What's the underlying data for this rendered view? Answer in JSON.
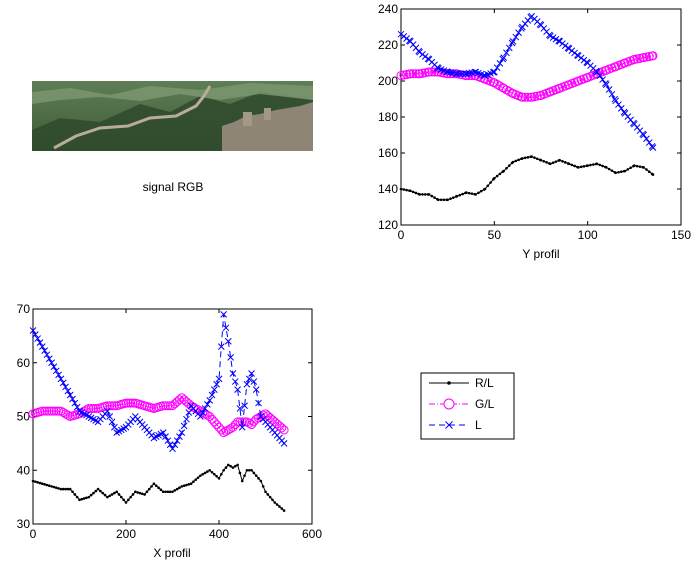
{
  "image_panel": {
    "caption": "signal RGB"
  },
  "legend": {
    "entries": [
      {
        "label": "R/L",
        "color": "#000000",
        "marker": "dot",
        "line": "solid"
      },
      {
        "label": "G/L",
        "color": "#ff00ff",
        "marker": "circle",
        "line": "dash-dot"
      },
      {
        "label": "L",
        "color": "#0000ff",
        "marker": "x",
        "line": "dashed"
      }
    ]
  },
  "chart_data": [
    {
      "id": "y_profile",
      "type": "line",
      "title": "",
      "xlabel": "Y profil",
      "ylabel": "",
      "xlim": [
        0,
        150
      ],
      "ylim": [
        120,
        240
      ],
      "xticks": [
        0,
        50,
        100,
        150
      ],
      "yticks": [
        120,
        140,
        160,
        180,
        200,
        220,
        240
      ],
      "grid": false,
      "x": [
        0,
        5,
        10,
        15,
        20,
        25,
        30,
        35,
        40,
        45,
        50,
        55,
        60,
        65,
        70,
        75,
        80,
        85,
        90,
        95,
        100,
        105,
        110,
        115,
        120,
        125,
        130,
        135
      ],
      "series": [
        {
          "name": "R/L",
          "color": "#000000",
          "marker": "dot",
          "values": [
            140,
            139,
            137,
            137,
            134,
            134,
            136,
            138,
            137,
            140,
            146,
            150,
            155,
            157,
            158,
            156,
            154,
            156,
            154,
            152,
            153,
            154,
            152,
            149,
            150,
            153,
            152,
            148
          ]
        },
        {
          "name": "G/L",
          "color": "#ff00ff",
          "marker": "circle",
          "values": [
            203,
            204,
            204,
            205,
            205,
            204,
            204,
            203,
            203,
            201,
            199,
            196,
            193,
            191,
            191,
            192,
            194,
            196,
            198,
            200,
            202,
            204,
            206,
            208,
            210,
            212,
            213,
            214
          ]
        },
        {
          "name": "L",
          "color": "#0000ff",
          "marker": "x",
          "values": [
            226,
            222,
            216,
            212,
            207,
            205,
            204,
            204,
            205,
            203,
            205,
            213,
            222,
            230,
            236,
            231,
            225,
            222,
            218,
            214,
            210,
            205,
            198,
            189,
            182,
            176,
            170,
            163
          ]
        }
      ]
    },
    {
      "id": "x_profile",
      "type": "line",
      "title": "",
      "xlabel": "X profil",
      "ylabel": "",
      "xlim": [
        0,
        600
      ],
      "ylim": [
        30,
        70
      ],
      "xticks": [
        0,
        200,
        400,
        600
      ],
      "yticks": [
        30,
        40,
        50,
        60,
        70
      ],
      "grid": false,
      "x": [
        0,
        20,
        40,
        60,
        80,
        100,
        120,
        140,
        160,
        180,
        200,
        220,
        240,
        260,
        280,
        300,
        320,
        340,
        360,
        380,
        400,
        410,
        420,
        430,
        440,
        450,
        460,
        470,
        480,
        490,
        500,
        520,
        540
      ],
      "series": [
        {
          "name": "R/L",
          "color": "#000000",
          "marker": "dot",
          "values": [
            38,
            37.5,
            37,
            36.5,
            36.5,
            34.5,
            35,
            36.5,
            35,
            36,
            34,
            36,
            35.5,
            37.5,
            36,
            36,
            37,
            37.5,
            39,
            40,
            38.5,
            40,
            41,
            40.5,
            41,
            38,
            40,
            40,
            39,
            38,
            36,
            34,
            32.5
          ]
        },
        {
          "name": "G/L",
          "color": "#ff00ff",
          "marker": "circle",
          "values": [
            50.5,
            51,
            51,
            51,
            50,
            50.5,
            51.5,
            51.5,
            52,
            52,
            52.5,
            52.5,
            52,
            51.5,
            52,
            52,
            53.5,
            52,
            51,
            50,
            48,
            47,
            47.5,
            48,
            49,
            49,
            49,
            48.5,
            49.5,
            50,
            50.5,
            49,
            47.5
          ]
        },
        {
          "name": "L",
          "color": "#0000ff",
          "marker": "x",
          "values": [
            66,
            63,
            60,
            57,
            54,
            51,
            50,
            49,
            51,
            47,
            48,
            50,
            48,
            46,
            47,
            44,
            47,
            52,
            50,
            53,
            57,
            69,
            64,
            58,
            55,
            48,
            56,
            58,
            55,
            50,
            49,
            47,
            45
          ]
        }
      ]
    }
  ]
}
